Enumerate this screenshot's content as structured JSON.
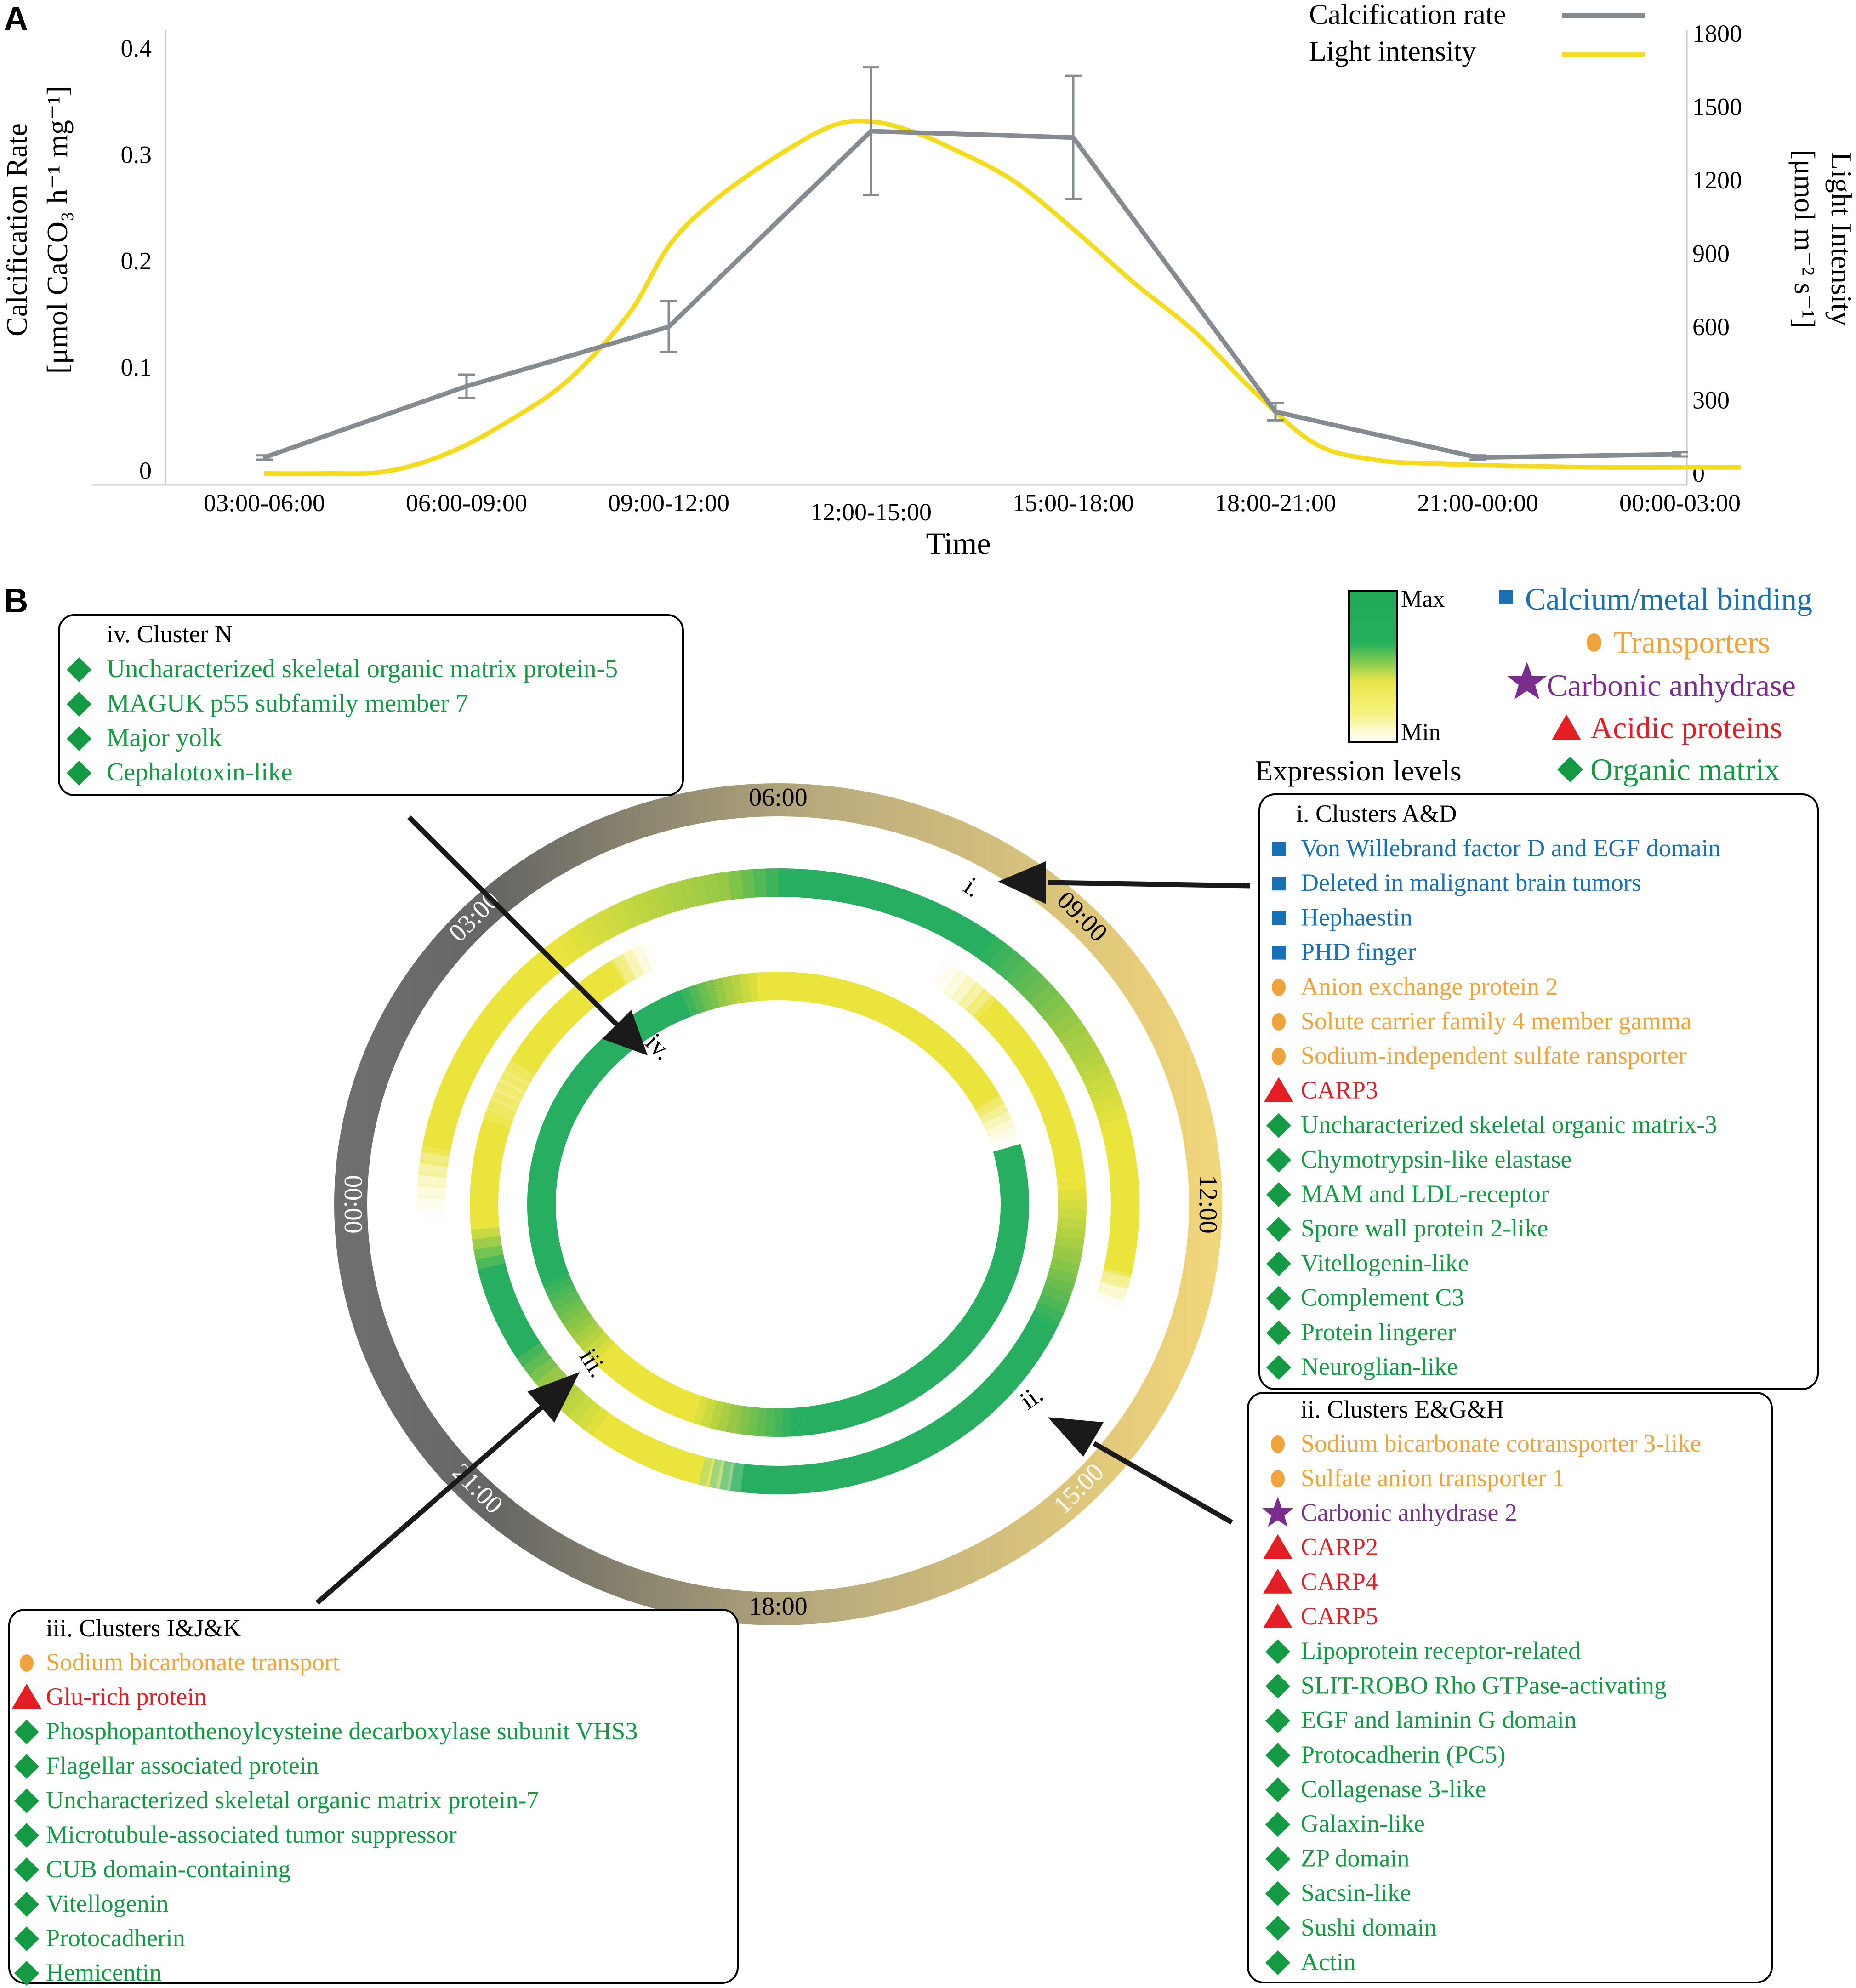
{
  "panel_a": {
    "label": "A",
    "chart_data": {
      "type": "line",
      "x_label": "Time",
      "categories": [
        "03:00-06:00",
        "06:00-09:00",
        "09:00-12:00",
        "12:00-15:00",
        "15:00-18:00",
        "18:00-21:00",
        "21:00-00:00",
        "00:00-03:00"
      ],
      "y_left": {
        "label_line1": "Calcification Rate",
        "label_line2": "[μmol CaCO₃ h⁻¹ mg⁻¹]",
        "ticks": [
          "0",
          "0.1",
          "0.2",
          "0.3",
          "0.4"
        ],
        "ylim": [
          0,
          0.4
        ]
      },
      "y_right": {
        "label_line1": "Light Intensity",
        "label_line2": "[μmol m⁻² s⁻¹]",
        "ticks": [
          "0",
          "300",
          "600",
          "900",
          "1200",
          "1500",
          "1800"
        ],
        "ylim": [
          0,
          1800
        ]
      },
      "series": [
        {
          "name": "Calcification rate",
          "axis": "left",
          "color": "#868b91",
          "x": [
            0,
            1,
            2,
            3,
            4,
            5,
            6,
            7
          ],
          "values": [
            0.015,
            0.082,
            0.138,
            0.322,
            0.316,
            0.058,
            0.015,
            0.018
          ],
          "error": [
            0.002,
            0.011,
            0.024,
            0.06,
            0.058,
            0.008,
            0.002,
            0.002
          ]
        },
        {
          "name": "Light intensity",
          "axis": "right",
          "color": "#f5db1e",
          "x": [
            0,
            0.3,
            0.6,
            0.9,
            1.2,
            1.5,
            1.8,
            2.0,
            2.2,
            2.5,
            2.8,
            3.0,
            3.2,
            3.4,
            3.7,
            4.0,
            4.3,
            4.6,
            4.9,
            5.2,
            5.5,
            5.8,
            6.2,
            6.6,
            7.0,
            7.3
          ],
          "values": [
            0,
            0,
            8,
            80,
            210,
            380,
            650,
            930,
            1100,
            1280,
            1420,
            1440,
            1400,
            1330,
            1200,
            1000,
            780,
            580,
            330,
            120,
            55,
            40,
            30,
            25,
            25,
            25
          ]
        }
      ]
    }
  },
  "panel_b": {
    "label": "B",
    "expression_legend": {
      "max": "Max",
      "min": "Min",
      "title": "Expression levels"
    },
    "category_legend": [
      {
        "shape": "square",
        "label": "Calcium/metal binding",
        "color": "#1b6fb5"
      },
      {
        "shape": "circle",
        "label": "Transporters",
        "color": "#f0a33a"
      },
      {
        "shape": "star",
        "label": "Carbonic anhydrase",
        "color": "#7b2d8e"
      },
      {
        "shape": "triangle",
        "label": "Acidic proteins",
        "color": "#e31e24"
      },
      {
        "shape": "diamond",
        "label": "Organic matrix",
        "color": "#139a43"
      }
    ],
    "clock_labels": [
      "06:00",
      "09:00",
      "12:00",
      "15:00",
      "18:00",
      "21:00",
      "00:00",
      "03:00"
    ],
    "ring_labels": [
      "i.",
      "ii.",
      "iii.",
      "iv."
    ],
    "clusters": [
      {
        "id": "iv",
        "title": "iv. Cluster N",
        "items": [
          {
            "shape": "diamond",
            "text": "Uncharacterized skeletal organic matrix protein-5"
          },
          {
            "shape": "diamond",
            "text": "MAGUK p55 subfamily member 7"
          },
          {
            "shape": "diamond",
            "text": "Major yolk"
          },
          {
            "shape": "diamond",
            "text": "Cephalotoxin-like"
          }
        ]
      },
      {
        "id": "i",
        "title": "i. Clusters A&D",
        "items": [
          {
            "shape": "square",
            "text": "Von Willebrand factor D and EGF domain"
          },
          {
            "shape": "square",
            "text": "Deleted in malignant brain tumors"
          },
          {
            "shape": "square",
            "text": "Hephaestin"
          },
          {
            "shape": "square",
            "text": "PHD finger"
          },
          {
            "shape": "circle",
            "text": "Anion exchange protein 2"
          },
          {
            "shape": "circle",
            "text": "Solute carrier family 4 member gamma"
          },
          {
            "shape": "circle",
            "text": "Sodium-independent sulfate ransporter"
          },
          {
            "shape": "triangle",
            "text": "CARP3"
          },
          {
            "shape": "diamond",
            "text": "Uncharacterized skeletal organic matrix-3"
          },
          {
            "shape": "diamond",
            "text": "Chymotrypsin-like elastase"
          },
          {
            "shape": "diamond",
            "text": "MAM and LDL-receptor"
          },
          {
            "shape": "diamond",
            "text": "Spore wall protein 2-like"
          },
          {
            "shape": "diamond",
            "text": "Vitellogenin-like"
          },
          {
            "shape": "diamond",
            "text": "Complement C3"
          },
          {
            "shape": "diamond",
            "text": "Protein lingerer"
          },
          {
            "shape": "diamond",
            "text": "Neuroglian-like"
          }
        ]
      },
      {
        "id": "ii",
        "title": "ii. Clusters E&G&H",
        "items": [
          {
            "shape": "circle",
            "text": "Sodium bicarbonate cotransporter 3-like"
          },
          {
            "shape": "circle",
            "text": "Sulfate anion transporter 1"
          },
          {
            "shape": "star",
            "text": "Carbonic anhydrase 2"
          },
          {
            "shape": "triangle",
            "text": "CARP2"
          },
          {
            "shape": "triangle",
            "text": "CARP4"
          },
          {
            "shape": "triangle",
            "text": "CARP5"
          },
          {
            "shape": "diamond",
            "text": "Lipoprotein receptor-related"
          },
          {
            "shape": "diamond",
            "text": "SLIT-ROBO Rho GTPase-activating"
          },
          {
            "shape": "diamond",
            "text": "EGF and laminin G domain"
          },
          {
            "shape": "diamond",
            "text": "Protocadherin (PC5)"
          },
          {
            "shape": "diamond",
            "text": "Collagenase 3-like"
          },
          {
            "shape": "diamond",
            "text": "Galaxin-like"
          },
          {
            "shape": "diamond",
            "text": "ZP domain"
          },
          {
            "shape": "diamond",
            "text": "Sacsin-like"
          },
          {
            "shape": "diamond",
            "text": "Sushi domain"
          },
          {
            "shape": "diamond",
            "text": "Actin"
          }
        ]
      },
      {
        "id": "iii",
        "title": "iii. Clusters I&J&K",
        "items": [
          {
            "shape": "circle",
            "text": "Sodium bicarbonate transport"
          },
          {
            "shape": "triangle",
            "text": "Glu-rich protein"
          },
          {
            "shape": "diamond",
            "text": "Phosphopantothenoylcysteine decarboxylase subunit VHS3"
          },
          {
            "shape": "diamond",
            "text": "Flagellar associated protein"
          },
          {
            "shape": "diamond",
            "text": "Uncharacterized skeletal organic matrix protein-7"
          },
          {
            "shape": "diamond",
            "text": "Microtubule-associated tumor suppressor"
          },
          {
            "shape": "diamond",
            "text": "CUB domain-containing"
          },
          {
            "shape": "diamond",
            "text": "Vitellogenin"
          },
          {
            "shape": "diamond",
            "text": "Protocadherin"
          },
          {
            "shape": "diamond",
            "text": "Hemicentin"
          }
        ]
      }
    ]
  }
}
